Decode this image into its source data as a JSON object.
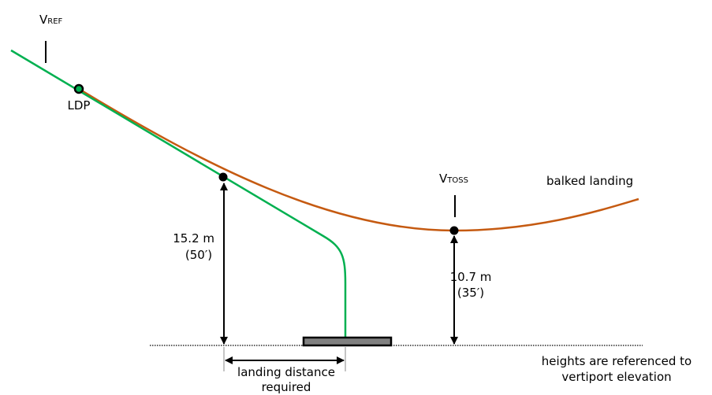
{
  "labels": {
    "vref": {
      "main": "V",
      "sub": "REF"
    },
    "vtoss": {
      "main": "V",
      "sub": "TOSS"
    },
    "ldp": "LDP",
    "balked_landing": "balked landing",
    "height_1": {
      "line1": "15.2 m",
      "line2": "(50′)"
    },
    "height_2": {
      "line1": "10.7 m",
      "line2": "(35′)"
    },
    "landing_distance": {
      "line1": "landing distance",
      "line2": "required"
    },
    "note": {
      "line1": "heights are referenced to",
      "line2": "vertiport elevation"
    }
  },
  "colors": {
    "approach_path": "#00b050",
    "balked_path": "#c55a11",
    "pad_fill": "#808080"
  }
}
